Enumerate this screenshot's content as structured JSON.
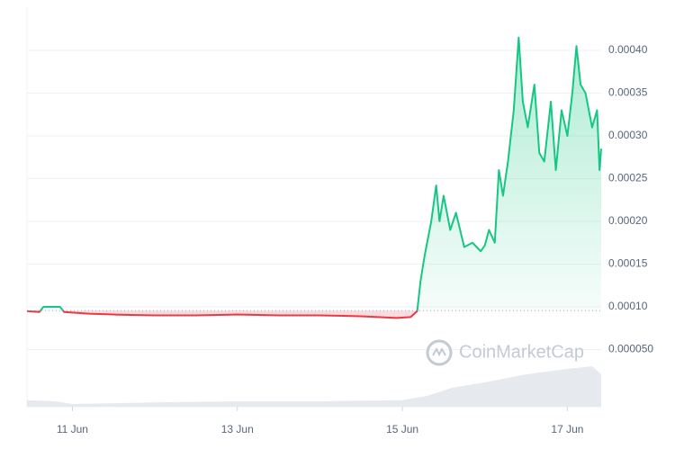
{
  "chart_data": {
    "type": "line",
    "watermark": "CoinMarketCap",
    "x": [
      10.45,
      10.6,
      10.65,
      10.85,
      10.9,
      11.2,
      11.5,
      12.0,
      12.5,
      13.0,
      13.5,
      14.0,
      14.5,
      14.93,
      15.1,
      15.18,
      15.22,
      15.27,
      15.35,
      15.41,
      15.45,
      15.5,
      15.58,
      15.65,
      15.75,
      15.85,
      15.95,
      16.0,
      16.05,
      16.12,
      16.17,
      16.22,
      16.28,
      16.35,
      16.41,
      16.46,
      16.52,
      16.6,
      16.66,
      16.72,
      16.8,
      16.86,
      16.93,
      17.0,
      17.06,
      17.11,
      17.16,
      17.22,
      17.3,
      17.36,
      17.39,
      17.41
    ],
    "series": [
      {
        "values": [
          9.5e-05,
          9.4e-05,
          0.0001,
          0.0001,
          9.4e-05,
          9.2e-05,
          9.1e-05,
          9e-05,
          9e-05,
          9.1e-05,
          9e-05,
          9e-05,
          8.9e-05,
          8.7e-05,
          8.8e-05,
          9.5e-05,
          0.00013,
          0.00016,
          0.0002,
          0.000242,
          0.0002,
          0.00023,
          0.00019,
          0.00021,
          0.00017,
          0.000175,
          0.000165,
          0.000172,
          0.00019,
          0.000175,
          0.00026,
          0.00023,
          0.00027,
          0.00033,
          0.000415,
          0.00034,
          0.00031,
          0.00036,
          0.00028,
          0.00027,
          0.00034,
          0.00026,
          0.00033,
          0.0003,
          0.00035,
          0.000405,
          0.00036,
          0.00035,
          0.00031,
          0.00033,
          0.00026,
          0.000285
        ],
        "color_up": "#16c784",
        "color_down": "#ea3943"
      }
    ],
    "baseline": 9.55e-05,
    "volume": {
      "x": [
        10.45,
        10.8,
        11.0,
        12.0,
        13.0,
        14.0,
        15.0,
        15.3,
        15.6,
        16.0,
        16.5,
        17.0,
        17.3,
        17.41
      ],
      "values": [
        0.12,
        0.1,
        0.05,
        0.08,
        0.1,
        0.1,
        0.12,
        0.2,
        0.35,
        0.45,
        0.6,
        0.7,
        0.75,
        0.6
      ],
      "ylim": [
        0,
        1
      ],
      "color": "#e6e9ee"
    },
    "xlim": [
      10.45,
      17.41
    ],
    "xticks": [
      {
        "value": 11,
        "label": "11 Jun"
      },
      {
        "value": 13,
        "label": "13 Jun"
      },
      {
        "value": 15,
        "label": "15 Jun"
      },
      {
        "value": 17,
        "label": "17 Jun"
      }
    ],
    "ylim": [
      0,
      0.00045
    ],
    "yticks": [
      {
        "value": 5e-05,
        "label": "0.000050"
      },
      {
        "value": 0.0001,
        "label": "0.00010"
      },
      {
        "value": 0.00015,
        "label": "0.00015"
      },
      {
        "value": 0.0002,
        "label": "0.00020"
      },
      {
        "value": 0.00025,
        "label": "0.00025"
      },
      {
        "value": 0.0003,
        "label": "0.00030"
      },
      {
        "value": 0.00035,
        "label": "0.00035"
      },
      {
        "value": 0.0004,
        "label": "0.00040"
      }
    ],
    "grid": true
  }
}
